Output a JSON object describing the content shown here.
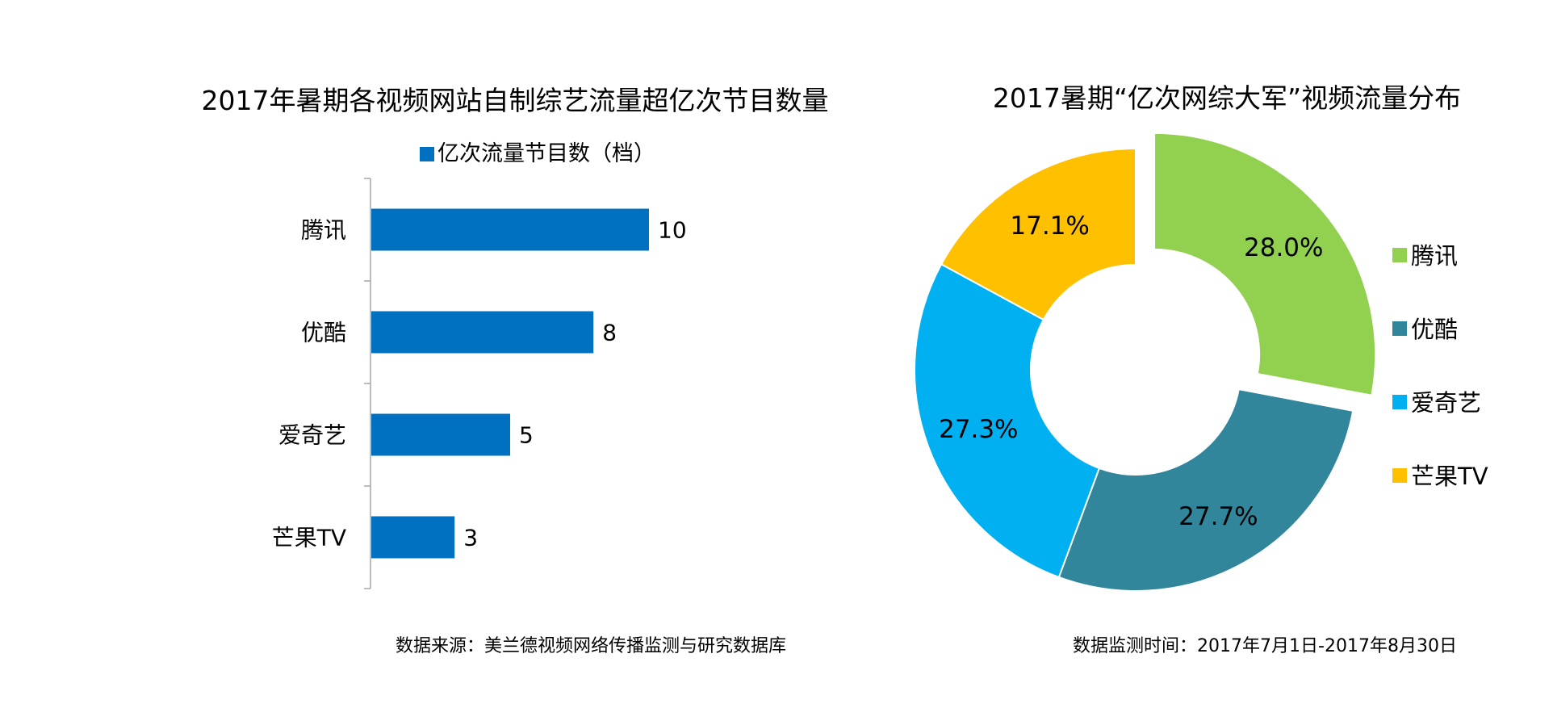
{
  "chart_data": [
    {
      "type": "bar",
      "orientation": "horizontal",
      "title": "2017年暑期各视频网站自制综艺流量超亿次节目数量",
      "legend": {
        "label": "亿次流量节目数（档）",
        "position": "top"
      },
      "categories": [
        "腾讯",
        "优酷",
        "爱奇艺",
        "芒果TV"
      ],
      "series": [
        {
          "name": "亿次流量节目数（档）",
          "values": [
            10,
            8,
            5,
            3
          ]
        }
      ],
      "data_labels": [
        "10",
        "8",
        "5",
        "3"
      ],
      "xlim": [
        0,
        16
      ],
      "color": "#0070c0",
      "grid": false
    },
    {
      "type": "pie",
      "subtype": "donut",
      "title": "2017暑期“亿次网综大军”视频流量分布",
      "legend_position": "right",
      "slices": [
        {
          "label": "腾讯",
          "value": 28.0,
          "display": "28.0%",
          "color": "#92d050",
          "exploded": true
        },
        {
          "label": "优酷",
          "value": 27.7,
          "display": "27.7%",
          "color": "#31869b",
          "exploded": false
        },
        {
          "label": "爱奇艺",
          "value": 27.3,
          "display": "27.3%",
          "color": "#00b0f0",
          "exploded": false
        },
        {
          "label": "芒果TV",
          "value": 17.1,
          "display": "17.1%",
          "color": "#ffc000",
          "exploded": false
        }
      ]
    }
  ],
  "footer": {
    "source": "数据来源：美兰德视频网络传播监测与研究数据库",
    "period": "数据监测时间：2017年7月1日-2017年8月30日"
  }
}
